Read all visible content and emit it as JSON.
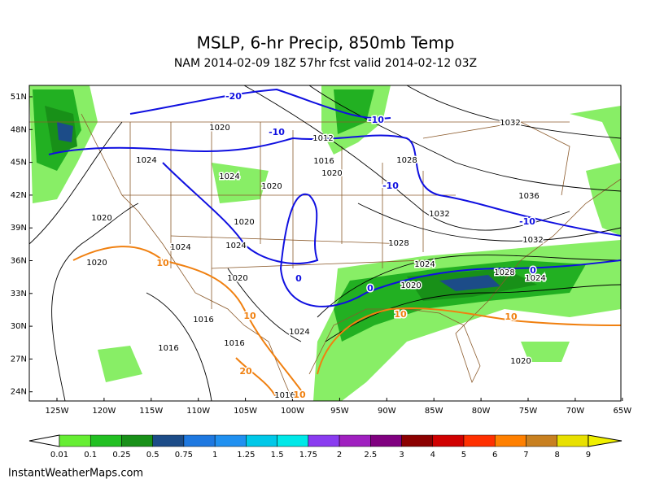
{
  "title": "MSLP, 6-hr Precip, 850mb Temp",
  "subtitle": "NAM 2014-02-09 18Z 57hr fcst valid 2014-02-12 03Z",
  "lat_labels": [
    "51N",
    "48N",
    "45N",
    "42N",
    "39N",
    "36N",
    "33N",
    "30N",
    "27N",
    "24N"
  ],
  "lon_labels": [
    "125W",
    "120W",
    "115W",
    "110W",
    "105W",
    "100W",
    "95W",
    "90W",
    "85W",
    "80W",
    "75W",
    "70W",
    "65W"
  ],
  "pressure_labels": [
    "1020",
    "1012",
    "1016",
    "1020",
    "1024",
    "1024",
    "1020",
    "1028",
    "1032",
    "1036",
    "1032",
    "1032",
    "1028",
    "1024",
    "1020",
    "1028",
    "1024",
    "1020",
    "1020",
    "1024",
    "1024",
    "1020",
    "1020",
    "1016",
    "1016",
    "1016",
    "1024",
    "1020",
    "1016"
  ],
  "temp_labels": [
    {
      "text": "-20",
      "color": "#1010e0"
    },
    {
      "text": "-10",
      "color": "#1010e0"
    },
    {
      "text": "-10",
      "color": "#1010e0"
    },
    {
      "text": "-10",
      "color": "#1010e0"
    },
    {
      "text": "-10",
      "color": "#1010e0"
    },
    {
      "text": "0",
      "color": "#1010e0"
    },
    {
      "text": "0",
      "color": "#1010e0"
    },
    {
      "text": "0",
      "color": "#1010e0"
    },
    {
      "text": "10",
      "color": "#f08010"
    },
    {
      "text": "10",
      "color": "#f08010"
    },
    {
      "text": "10",
      "color": "#f08010"
    },
    {
      "text": "10",
      "color": "#f08010"
    },
    {
      "text": "20",
      "color": "#f08010"
    },
    {
      "text": "10",
      "color": "#f08010"
    }
  ],
  "colorbar": {
    "labels": [
      "0.01",
      "0.1",
      "0.25",
      "0.5",
      "0.75",
      "1",
      "1.25",
      "1.5",
      "1.75",
      "2",
      "2.5",
      "3",
      "4",
      "5",
      "6",
      "7",
      "8",
      "9"
    ],
    "colors": [
      "#66ee33",
      "#22c022",
      "#189018",
      "#1c4c88",
      "#1e78e0",
      "#2090f0",
      "#00c8e8",
      "#00e8e8",
      "#8a3cf0",
      "#a020c0",
      "#800080",
      "#8b0000",
      "#d00000",
      "#ff3000",
      "#ff8000",
      "#c88020",
      "#e8e000"
    ],
    "low_color": "#ffffff",
    "high_color": "#f0f000"
  },
  "credit": "InstantWeatherMaps.com"
}
